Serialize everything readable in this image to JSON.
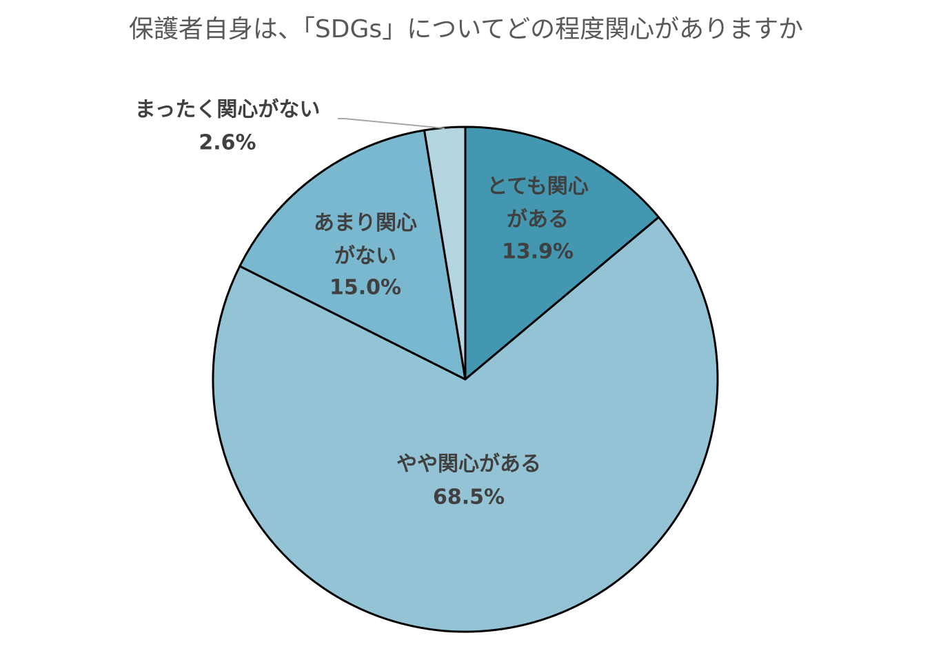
{
  "chart_data": {
    "type": "pie",
    "title": "保護者自身は、「SDGs」についてどの程度関心がありますか",
    "categories": [
      "とても関心\nがある",
      "やや関心がある",
      "あまり関心\nがない",
      "まったく関心がない"
    ],
    "values": [
      13.9,
      68.5,
      15.0,
      2.6
    ],
    "value_labels": [
      "13.9%",
      "68.5%",
      "15.0%",
      "2.6%"
    ],
    "colors": [
      "#4397b0",
      "#94c3d5",
      "#7ab8cf",
      "#b5d5e0"
    ]
  }
}
